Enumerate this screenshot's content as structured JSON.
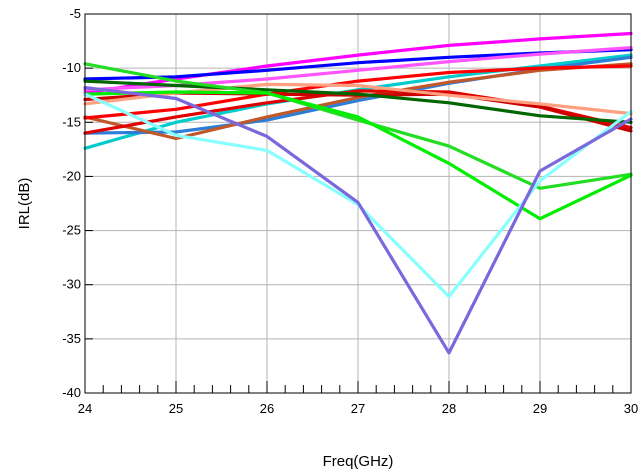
{
  "chart_data": {
    "type": "line",
    "title": "",
    "xlabel": "Freq(GHz)",
    "ylabel": "IRL(dB)",
    "xlim": [
      24,
      30
    ],
    "ylim": [
      -40,
      -5
    ],
    "x_ticks": [
      24,
      25,
      26,
      27,
      28,
      29,
      30
    ],
    "y_ticks": [
      -40,
      -35,
      -30,
      -25,
      -20,
      -15,
      -10,
      -5
    ],
    "grid": true,
    "legend": "none",
    "x": [
      24,
      25,
      26,
      27,
      28,
      29,
      30
    ],
    "series": [
      {
        "color": "#ff00ff",
        "values": [
          -12.3,
          -11.0,
          -9.8,
          -8.8,
          -7.9,
          -7.3,
          -6.8
        ]
      },
      {
        "color": "#0000ff",
        "values": [
          -11.0,
          -10.8,
          -10.2,
          -9.5,
          -9.0,
          -8.6,
          -8.3
        ]
      },
      {
        "color": "#ff55ff",
        "values": [
          -12.0,
          -11.6,
          -11.0,
          -10.2,
          -9.4,
          -8.7,
          -8.1
        ]
      },
      {
        "color": "#00cccc",
        "values": [
          -17.4,
          -15.0,
          -13.3,
          -12.0,
          -10.8,
          -9.8,
          -8.8
        ]
      },
      {
        "color": "#2e7dd7",
        "values": [
          -16.0,
          -15.9,
          -14.8,
          -13.0,
          -11.4,
          -10.1,
          -9.0
        ]
      },
      {
        "color": "#c0582a",
        "values": [
          -14.5,
          -16.5,
          -14.5,
          -12.7,
          -11.3,
          -10.2,
          -9.6
        ]
      },
      {
        "color": "#ff0000",
        "values": [
          -14.6,
          -13.8,
          -12.4,
          -11.2,
          -10.4,
          -10.0,
          -9.8
        ]
      },
      {
        "color": "#e00000",
        "values": [
          -16.0,
          -14.5,
          -13.2,
          -12.1,
          -12.2,
          -13.5,
          -15.5
        ]
      },
      {
        "color": "#cc0000",
        "values": [
          -12.9,
          -12.3,
          -12.4,
          -12.5,
          -12.4,
          -13.6,
          -15.8
        ]
      },
      {
        "color": "#ffa080",
        "values": [
          -13.3,
          -12.3,
          -11.5,
          -11.6,
          -12.5,
          -13.3,
          -14.2
        ]
      },
      {
        "color": "#006600",
        "values": [
          -11.2,
          -11.6,
          -12.0,
          -12.4,
          -13.2,
          -14.4,
          -15.0
        ]
      },
      {
        "color": "#22dd22",
        "values": [
          -9.6,
          -11.2,
          -12.3,
          -14.8,
          -17.2,
          -21.1,
          -19.8
        ]
      },
      {
        "color": "#00ee00",
        "values": [
          -12.4,
          -12.2,
          -12.3,
          -14.5,
          -18.8,
          -23.9,
          -19.9
        ]
      },
      {
        "color": "#88ffff",
        "values": [
          -12.4,
          -16.2,
          -17.6,
          -22.6,
          -31.1,
          -20.4,
          -14.0
        ]
      },
      {
        "color": "#7b68dd",
        "values": [
          -11.8,
          -12.8,
          -16.3,
          -22.4,
          -36.3,
          -19.5,
          -14.7
        ]
      }
    ]
  }
}
